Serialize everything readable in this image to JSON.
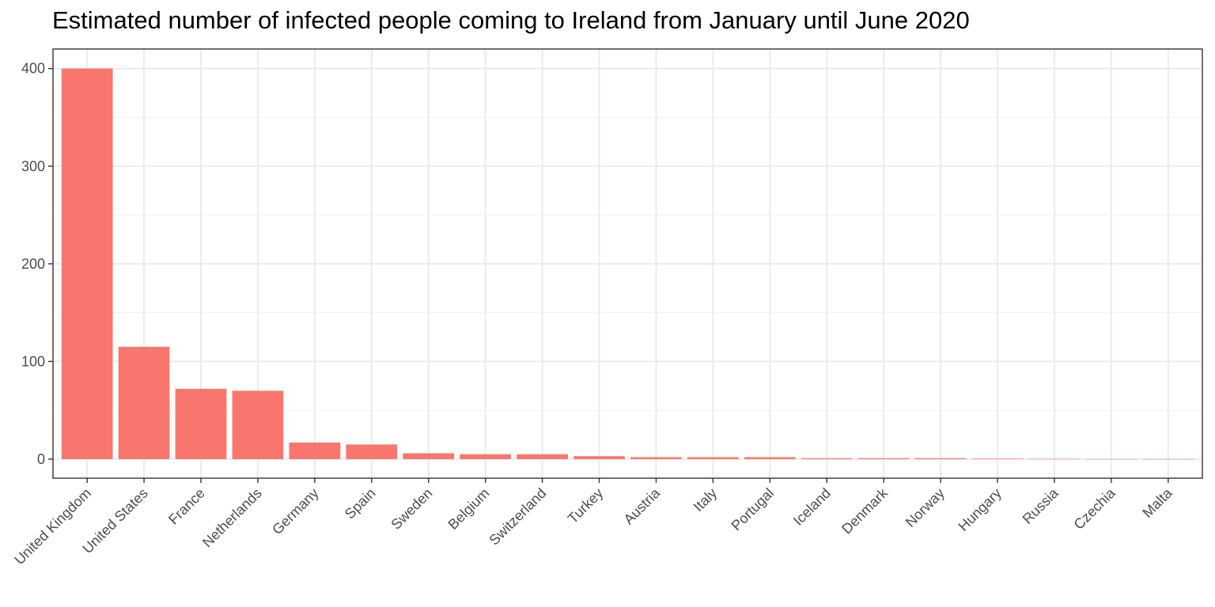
{
  "chart_data": {
    "type": "bar",
    "title": "Estimated number of infected people coming to Ireland from January until June 2020",
    "xlabel": "",
    "ylabel": "",
    "categories": [
      "United Kingdom",
      "United States",
      "France",
      "Netherlands",
      "Germany",
      "Spain",
      "Sweden",
      "Belgium",
      "Switzerland",
      "Turkey",
      "Austria",
      "Italy",
      "Portugal",
      "Iceland",
      "Denmark",
      "Norway",
      "Hungary",
      "Russia",
      "Czechia",
      "Malta"
    ],
    "values": [
      400,
      115,
      72,
      70,
      17,
      15,
      6,
      5,
      5,
      3,
      2,
      2,
      2,
      1,
      1,
      1,
      0.5,
      0.2,
      0.1,
      0.1
    ],
    "ylim": [
      -19.5,
      420
    ],
    "yticks": [
      0,
      100,
      200,
      300,
      400
    ],
    "grid": true,
    "colors": {
      "bar": "#F8766D",
      "panel_border": "#333333",
      "grid_major": "#EBEBEB",
      "grid_minor": "#F4F4F4",
      "tick_text": "#4D4D4D"
    }
  }
}
